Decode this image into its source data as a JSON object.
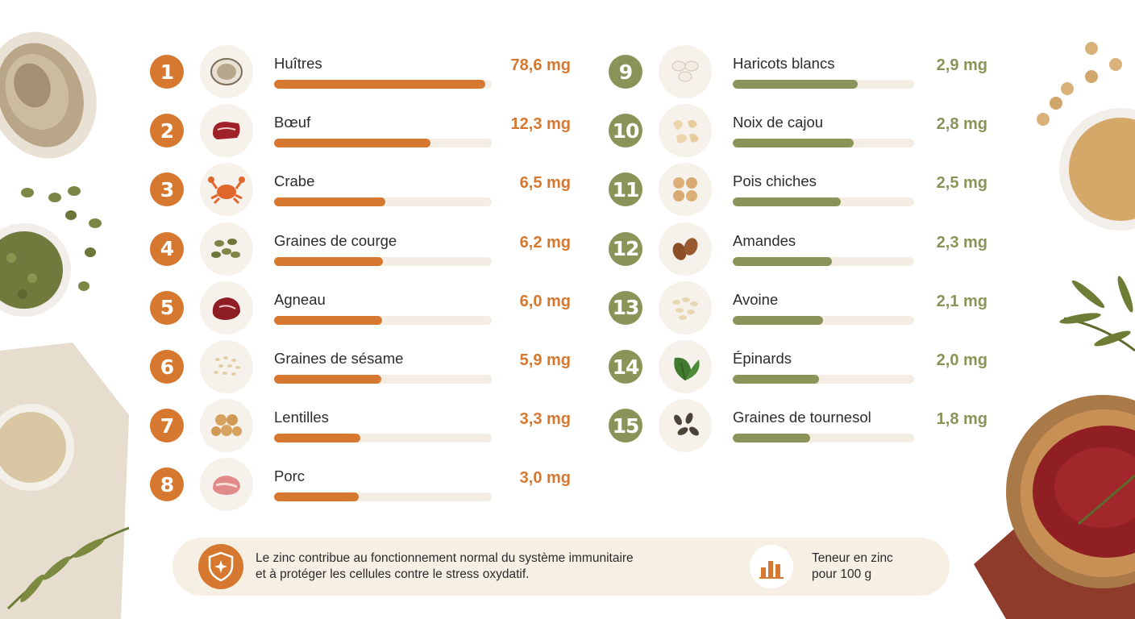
{
  "chart_data": {
    "type": "bar",
    "unit": "mg",
    "colors": {
      "primary": "#d6782f",
      "secondary": "#8a9358",
      "track": "#f3ede4"
    },
    "items": [
      {
        "rank": "1",
        "name": "Huîtres",
        "value": 78.6,
        "label": "78,6 mg",
        "icon": "oyster-icon"
      },
      {
        "rank": "2",
        "name": "Bœuf",
        "value": 12.3,
        "label": "12,3 mg",
        "icon": "beef-icon"
      },
      {
        "rank": "3",
        "name": "Crabe",
        "value": 6.5,
        "label": "6,5 mg",
        "icon": "crab-icon"
      },
      {
        "rank": "4",
        "name": "Graines de courge",
        "value": 6.2,
        "label": "6,2 mg",
        "icon": "pumpkin-seeds-icon"
      },
      {
        "rank": "5",
        "name": "Agneau",
        "value": 6.0,
        "label": "6,0 mg",
        "icon": "lamb-icon"
      },
      {
        "rank": "6",
        "name": "Graines de sésame",
        "value": 5.9,
        "label": "5,9 mg",
        "icon": "sesame-icon"
      },
      {
        "rank": "7",
        "name": "Lentilles",
        "value": 3.3,
        "label": "3,3 mg",
        "icon": "lentils-icon"
      },
      {
        "rank": "8",
        "name": "Porc",
        "value": 3.0,
        "label": "3,0 mg",
        "icon": "pork-icon"
      },
      {
        "rank": "9",
        "name": "Haricots blancs",
        "value": 2.9,
        "label": "2,9 mg",
        "icon": "white-beans-icon"
      },
      {
        "rank": "10",
        "name": "Noix de cajou",
        "value": 2.8,
        "label": "2,8 mg",
        "icon": "cashew-icon"
      },
      {
        "rank": "11",
        "name": "Pois chiches",
        "value": 2.5,
        "label": "2,5 mg",
        "icon": "chickpeas-icon"
      },
      {
        "rank": "12",
        "name": "Amandes",
        "value": 2.3,
        "label": "2,3 mg",
        "icon": "almonds-icon"
      },
      {
        "rank": "13",
        "name": "Avoine",
        "value": 2.1,
        "label": "2,1 mg",
        "icon": "oats-icon"
      },
      {
        "rank": "14",
        "name": "Épinards",
        "value": 2.0,
        "label": "2,0 mg",
        "icon": "spinach-icon"
      },
      {
        "rank": "15",
        "name": "Graines de tournesol",
        "value": 1.8,
        "label": "1,8 mg",
        "icon": "sunflower-seeds-icon"
      }
    ]
  },
  "footer": {
    "info_line1": "Le zinc contribue au fonctionnement normal du système immunitaire",
    "info_line2": "et à protéger les cellules contre le stress oxydatif.",
    "legend_line1": "Teneur en zinc",
    "legend_line2": "pour 100 g",
    "info_icon": "shield-icon",
    "legend_icon": "bar-chart-icon"
  }
}
